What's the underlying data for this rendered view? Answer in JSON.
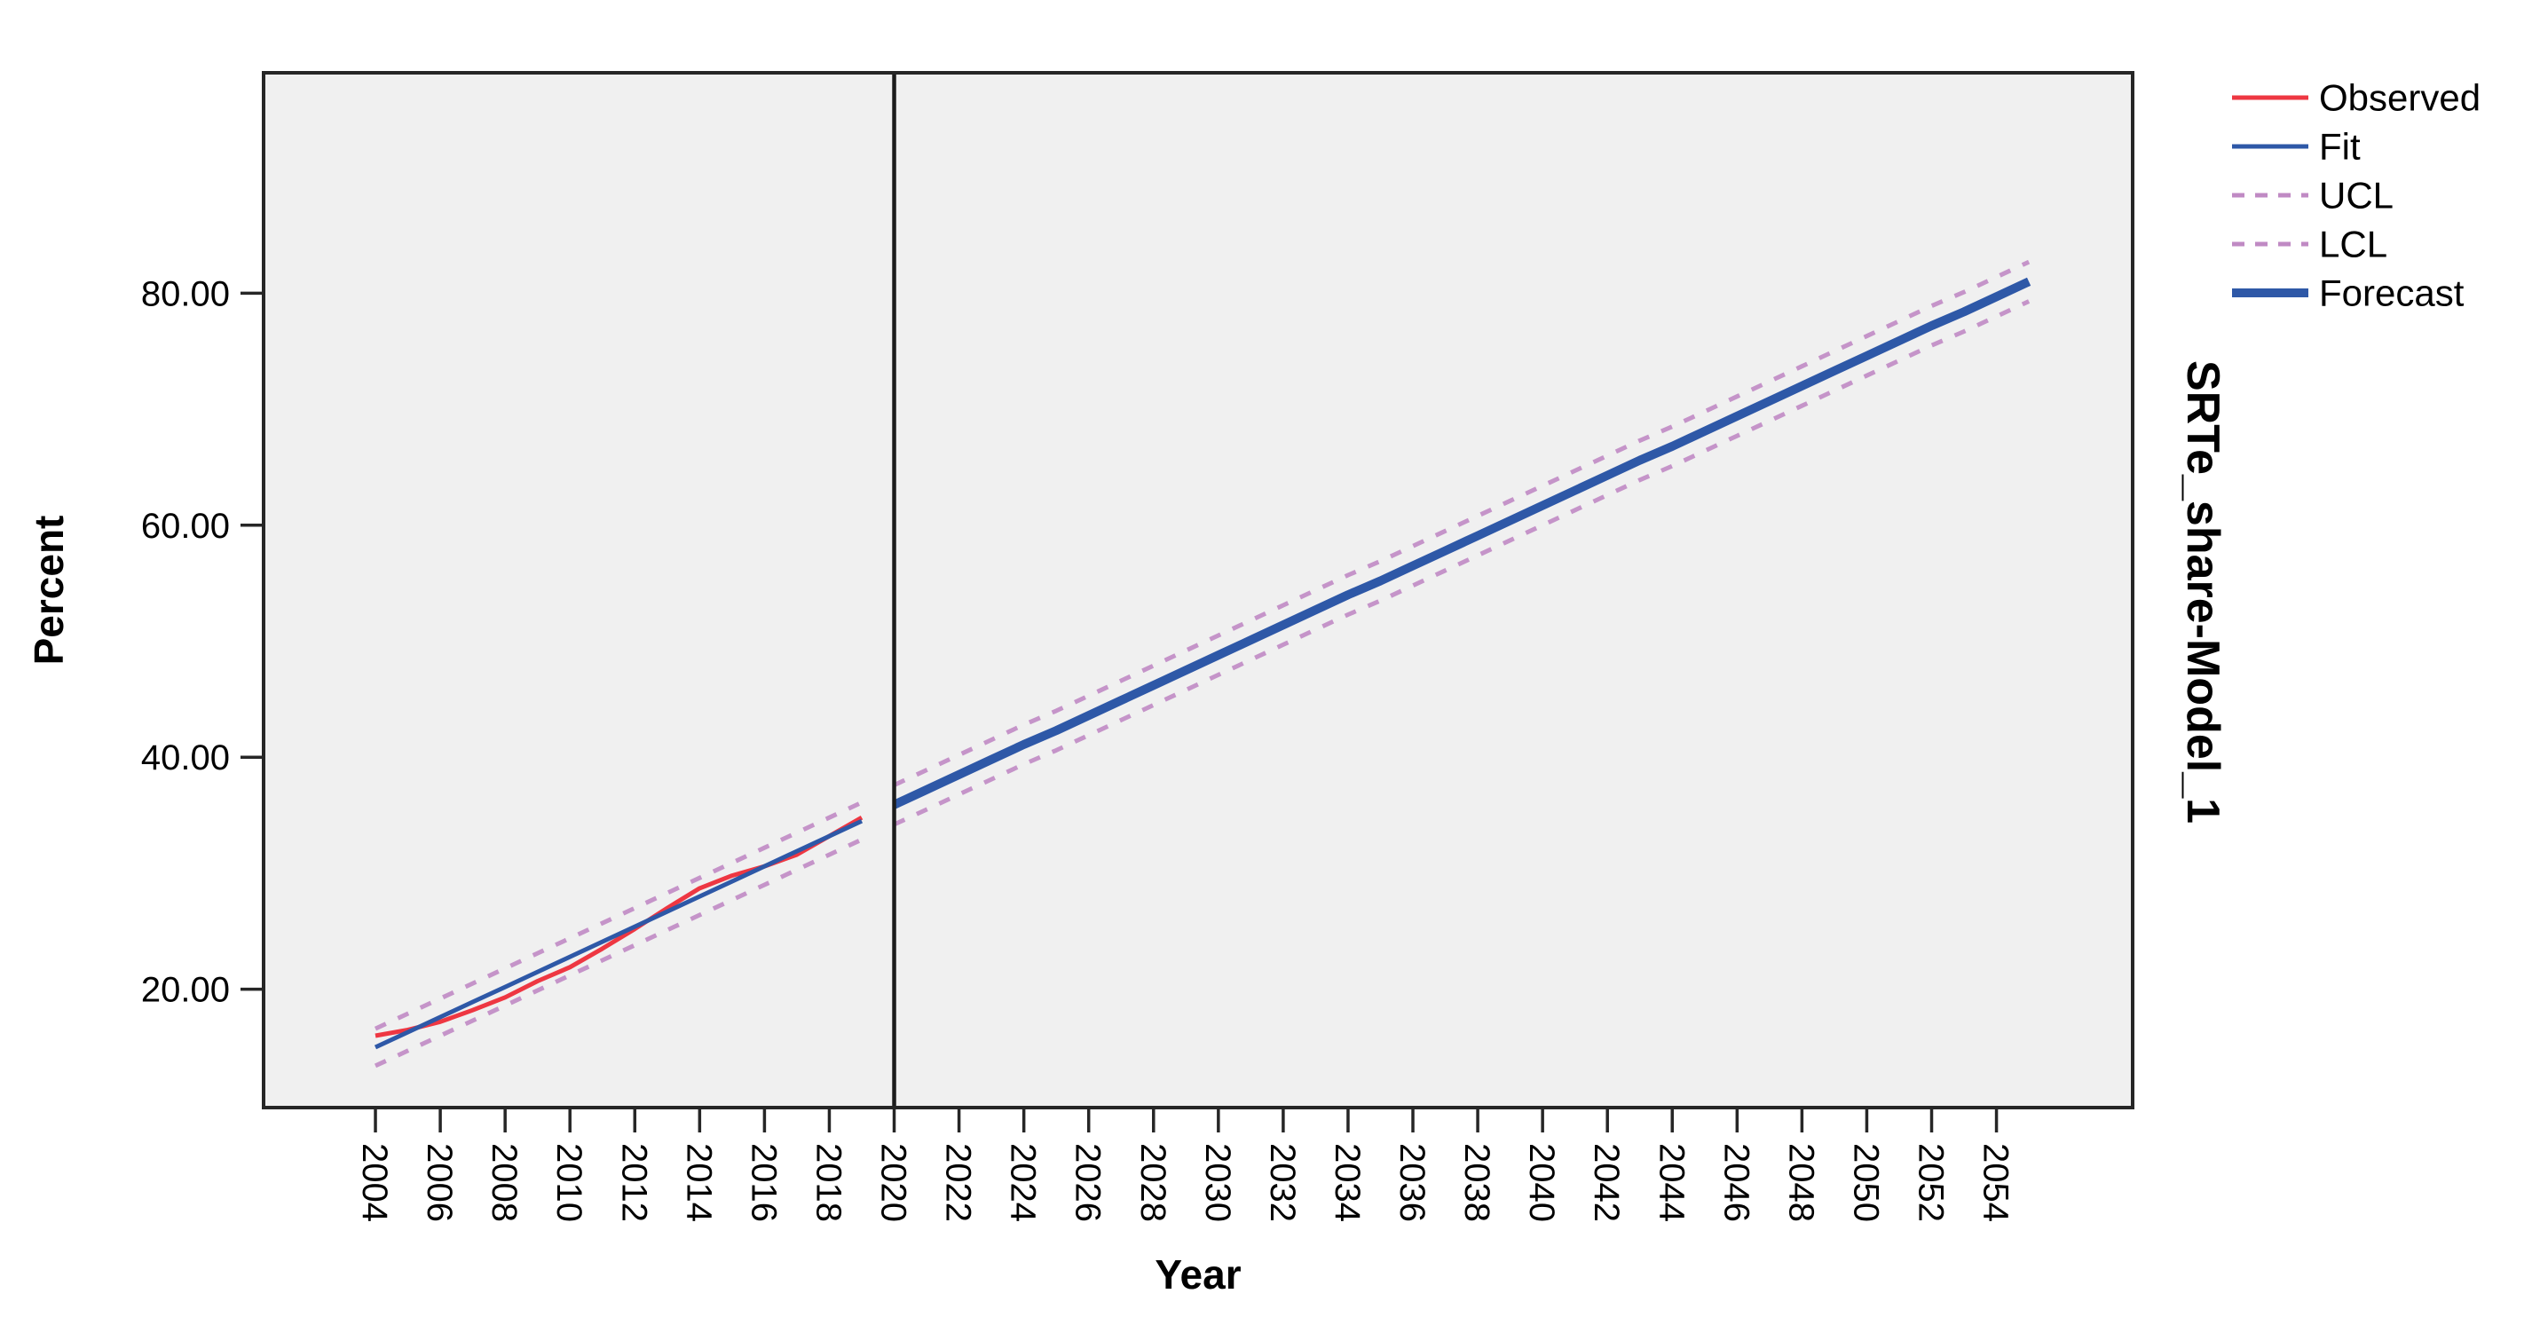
{
  "page": {
    "background": "#ffffff"
  },
  "chart_data": {
    "type": "line",
    "title": "",
    "xlabel": "Year",
    "ylabel": "Percent",
    "right_label": "SRTe_share-Model_1",
    "xlim": [
      2000.55,
      2058.2
    ],
    "ylim": [
      9.8,
      99.0
    ],
    "x_ticks": [
      2004,
      2006,
      2008,
      2010,
      2012,
      2014,
      2016,
      2018,
      2020,
      2022,
      2024,
      2026,
      2028,
      2030,
      2032,
      2034,
      2036,
      2038,
      2040,
      2042,
      2044,
      2046,
      2048,
      2050,
      2052,
      2054
    ],
    "y_ticks": {
      "values": [
        20,
        40,
        60,
        80
      ],
      "labels": [
        "20.00",
        "40.00",
        "60.00",
        "80.00"
      ]
    },
    "forecast_divider_year": 2020,
    "grid": false,
    "legend_position": "top-right",
    "colors": {
      "observed": "#ee3742",
      "fit": "#2e58a7",
      "interval": "#c08ac4",
      "forecast": "#2e58a7",
      "frame": "#262626",
      "divider": "#1c1c1c",
      "plot_bg": "#f0f0f0"
    },
    "series": [
      {
        "name": "Observed",
        "color": "#ee3742",
        "style": "solid",
        "width": 5,
        "segments": [
          {
            "x_start": 2004,
            "values": [
              16.0,
              16.5,
              17.2,
              18.2,
              19.3,
              20.7,
              21.9,
              23.5,
              25.2,
              27.0,
              28.7,
              29.8,
              30.6,
              31.6,
              33.2,
              34.8
            ]
          }
        ]
      },
      {
        "name": "Fit",
        "color": "#2e58a7",
        "style": "solid",
        "width": 5,
        "segments": [
          {
            "x_start": 2004,
            "values": [
              15.0,
              16.3,
              17.6,
              18.9,
              20.2,
              21.5,
              22.8,
              24.1,
              25.4,
              26.7,
              28.0,
              29.3,
              30.6,
              31.9,
              33.2,
              34.5
            ]
          }
        ]
      },
      {
        "name": "UCL",
        "color": "#c08ac4",
        "style": "dashed",
        "width": 5,
        "segments": [
          {
            "x_start": 2004,
            "values": [
              16.6,
              17.9,
              19.2,
              20.5,
              21.8,
              23.1,
              24.4,
              25.7,
              27.0,
              28.3,
              29.6,
              30.9,
              32.2,
              33.5,
              34.8,
              36.1
            ]
          },
          {
            "x_start": 2020,
            "values": [
              37.6,
              38.9,
              40.2,
              41.5,
              42.8,
              44.0,
              45.3,
              46.6,
              47.9,
              49.2,
              50.5,
              51.8,
              53.1,
              54.4,
              55.7,
              56.9,
              58.2,
              59.5,
              60.8,
              62.1,
              63.4,
              64.7,
              66.0,
              67.3,
              68.5,
              69.8,
              71.1,
              72.4,
              73.7,
              75.0,
              76.3,
              77.6,
              78.9,
              80.1,
              81.4,
              82.7
            ]
          }
        ]
      },
      {
        "name": "LCL",
        "color": "#c08ac4",
        "style": "dashed",
        "width": 5,
        "segments": [
          {
            "x_start": 2004,
            "values": [
              13.4,
              14.7,
              16.0,
              17.3,
              18.6,
              19.9,
              21.2,
              22.5,
              23.8,
              25.1,
              26.4,
              27.7,
              29.0,
              30.3,
              31.6,
              32.9
            ]
          },
          {
            "x_start": 2020,
            "values": [
              34.2,
              35.5,
              36.8,
              38.1,
              39.4,
              40.6,
              41.9,
              43.2,
              44.5,
              45.8,
              47.1,
              48.4,
              49.7,
              51.0,
              52.3,
              53.5,
              54.8,
              56.1,
              57.4,
              58.7,
              60.0,
              61.3,
              62.6,
              63.9,
              65.1,
              66.4,
              67.7,
              69.0,
              70.3,
              71.6,
              72.9,
              74.2,
              75.5,
              76.7,
              78.0,
              79.3
            ]
          }
        ]
      },
      {
        "name": "Forecast",
        "color": "#2e58a7",
        "style": "solid",
        "width": 10,
        "segments": [
          {
            "x_start": 2020,
            "values": [
              35.9,
              37.2,
              38.5,
              39.8,
              41.1,
              42.3,
              43.6,
              44.9,
              46.2,
              47.5,
              48.8,
              50.1,
              51.4,
              52.7,
              54.0,
              55.2,
              56.5,
              57.8,
              59.1,
              60.4,
              61.7,
              63.0,
              64.3,
              65.6,
              66.8,
              68.1,
              69.4,
              70.7,
              72.0,
              73.3,
              74.6,
              75.9,
              77.2,
              78.4,
              79.7,
              81.0
            ]
          }
        ]
      }
    ]
  },
  "legend": {
    "items": [
      {
        "label": "Observed"
      },
      {
        "label": "Fit"
      },
      {
        "label": "UCL"
      },
      {
        "label": "LCL"
      },
      {
        "label": "Forecast"
      }
    ]
  }
}
